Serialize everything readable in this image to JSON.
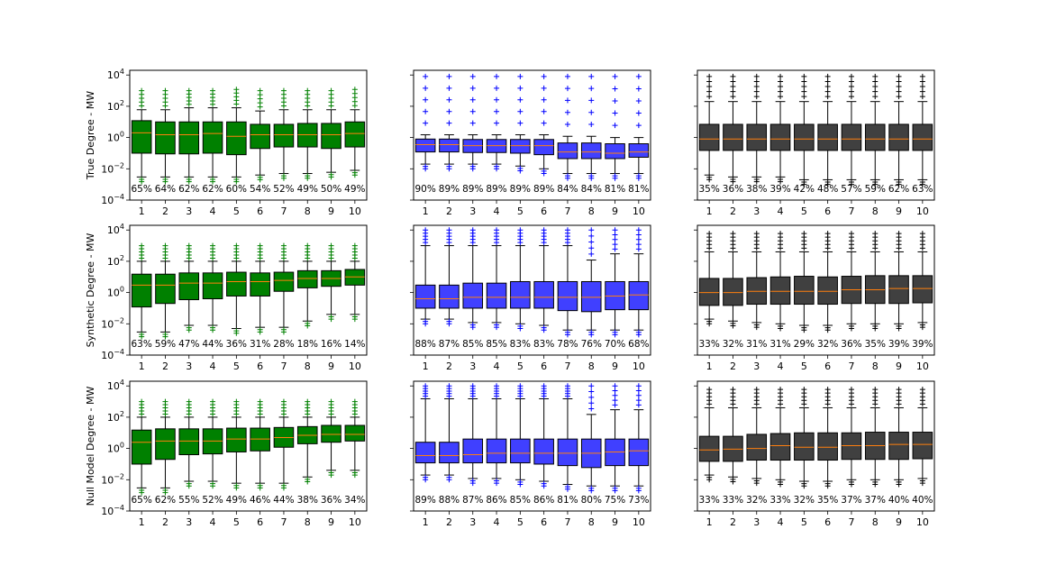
{
  "chart_data": {
    "type": "box",
    "grid": false,
    "y_scale": "log",
    "ylim": [
      0.0001,
      20000
    ],
    "y_ticks": [
      {
        "value": 0.0001,
        "base": "10",
        "exp": "−4"
      },
      {
        "value": 0.01,
        "base": "10",
        "exp": "−2"
      },
      {
        "value": 1,
        "base": "10",
        "exp": "0"
      },
      {
        "value": 100,
        "base": "10",
        "exp": "2"
      },
      {
        "value": 10000,
        "base": "10",
        "exp": "4"
      }
    ],
    "categories": [
      "1",
      "2",
      "3",
      "4",
      "5",
      "6",
      "7",
      "8",
      "9",
      "10"
    ],
    "row_labels": [
      "True Degree - MW",
      "Synthetic Degree - MW",
      "Null Model Degree - MW"
    ],
    "colors": {
      "green": "#008000",
      "blue": "#4040ff",
      "dark": "#404040",
      "median": "#ff7f0e",
      "green_flier": "#008000",
      "blue_flier": "#0000ff",
      "dark_flier": "#000000"
    },
    "panels": [
      {
        "row": 0,
        "col": 0,
        "color": "green",
        "percentages": [
          "65%",
          "64%",
          "62%",
          "62%",
          "60%",
          "54%",
          "52%",
          "49%",
          "50%",
          "49%"
        ],
        "boxes": [
          {
            "q1": 0.1,
            "med": 2,
            "q3": 12,
            "wlo": 0.003,
            "whi": 60,
            "fhi": 1000
          },
          {
            "q1": 0.09,
            "med": 1.5,
            "q3": 10,
            "wlo": 0.003,
            "whi": 60,
            "fhi": 1000
          },
          {
            "q1": 0.09,
            "med": 1.5,
            "q3": 10,
            "wlo": 0.003,
            "whi": 80,
            "fhi": 1000
          },
          {
            "q1": 0.1,
            "med": 1.8,
            "q3": 10,
            "wlo": 0.003,
            "whi": 80,
            "fhi": 1000
          },
          {
            "q1": 0.08,
            "med": 1.2,
            "q3": 10,
            "wlo": 0.003,
            "whi": 80,
            "fhi": 1200
          },
          {
            "q1": 0.2,
            "med": 1.5,
            "q3": 7,
            "wlo": 0.004,
            "whi": 50,
            "fhi": 1000
          },
          {
            "q1": 0.25,
            "med": 1.5,
            "q3": 7,
            "wlo": 0.005,
            "whi": 60,
            "fhi": 1000
          },
          {
            "q1": 0.25,
            "med": 1.5,
            "q3": 8,
            "wlo": 0.005,
            "whi": 60,
            "fhi": 1000
          },
          {
            "q1": 0.2,
            "med": 1.5,
            "q3": 8,
            "wlo": 0.006,
            "whi": 60,
            "fhi": 1000
          },
          {
            "q1": 0.25,
            "med": 1.8,
            "q3": 10,
            "wlo": 0.008,
            "whi": 60,
            "fhi": 1200
          }
        ]
      },
      {
        "row": 0,
        "col": 1,
        "color": "blue",
        "percentages": [
          "90%",
          "89%",
          "89%",
          "89%",
          "89%",
          "89%",
          "84%",
          "84%",
          "81%",
          "81%"
        ],
        "boxes": [
          {
            "q1": 0.12,
            "med": 0.35,
            "q3": 0.8,
            "wlo": 0.02,
            "whi": 1.5,
            "fhi": 8000
          },
          {
            "q1": 0.12,
            "med": 0.35,
            "q3": 0.8,
            "wlo": 0.02,
            "whi": 1.5,
            "fhi": 8000
          },
          {
            "q1": 0.11,
            "med": 0.3,
            "q3": 0.75,
            "wlo": 0.02,
            "whi": 1.5,
            "fhi": 8000
          },
          {
            "q1": 0.11,
            "med": 0.3,
            "q3": 0.75,
            "wlo": 0.02,
            "whi": 1.5,
            "fhi": 8000
          },
          {
            "q1": 0.1,
            "med": 0.3,
            "q3": 0.75,
            "wlo": 0.015,
            "whi": 1.5,
            "fhi": 8000
          },
          {
            "q1": 0.08,
            "med": 0.3,
            "q3": 0.75,
            "wlo": 0.01,
            "whi": 1.5,
            "fhi": 8000
          },
          {
            "q1": 0.045,
            "med": 0.12,
            "q3": 0.45,
            "wlo": 0.005,
            "whi": 1.2,
            "fhi": 8000
          },
          {
            "q1": 0.045,
            "med": 0.12,
            "q3": 0.45,
            "wlo": 0.005,
            "whi": 1.2,
            "fhi": 8000
          },
          {
            "q1": 0.045,
            "med": 0.1,
            "q3": 0.4,
            "wlo": 0.005,
            "whi": 1.0,
            "fhi": 8000
          },
          {
            "q1": 0.055,
            "med": 0.12,
            "q3": 0.4,
            "wlo": 0.005,
            "whi": 1.0,
            "fhi": 8000
          }
        ]
      },
      {
        "row": 0,
        "col": 2,
        "color": "dark",
        "percentages": [
          "35%",
          "36%",
          "38%",
          "39%",
          "42%",
          "48%",
          "57%",
          "59%",
          "62%",
          "63%"
        ],
        "boxes": [
          {
            "q1": 0.15,
            "med": 0.8,
            "q3": 7,
            "wlo": 0.004,
            "whi": 200,
            "fhi": 8000
          },
          {
            "q1": 0.15,
            "med": 0.8,
            "q3": 7,
            "wlo": 0.003,
            "whi": 200,
            "fhi": 8000
          },
          {
            "q1": 0.15,
            "med": 0.8,
            "q3": 7,
            "wlo": 0.003,
            "whi": 200,
            "fhi": 8000
          },
          {
            "q1": 0.15,
            "med": 0.8,
            "q3": 7,
            "wlo": 0.003,
            "whi": 200,
            "fhi": 8000
          },
          {
            "q1": 0.15,
            "med": 0.8,
            "q3": 7,
            "wlo": 0.002,
            "whi": 200,
            "fhi": 8000
          },
          {
            "q1": 0.15,
            "med": 0.8,
            "q3": 7,
            "wlo": 0.002,
            "whi": 200,
            "fhi": 8000
          },
          {
            "q1": 0.15,
            "med": 0.8,
            "q3": 7,
            "wlo": 0.002,
            "whi": 200,
            "fhi": 8000
          },
          {
            "q1": 0.15,
            "med": 0.8,
            "q3": 7,
            "wlo": 0.002,
            "whi": 200,
            "fhi": 8000
          },
          {
            "q1": 0.15,
            "med": 0.8,
            "q3": 7,
            "wlo": 0.002,
            "whi": 200,
            "fhi": 8000
          },
          {
            "q1": 0.15,
            "med": 0.8,
            "q3": 7,
            "wlo": 0.002,
            "whi": 200,
            "fhi": 8000
          }
        ]
      },
      {
        "row": 1,
        "col": 0,
        "color": "green",
        "percentages": [
          "63%",
          "59%",
          "47%",
          "44%",
          "36%",
          "31%",
          "28%",
          "18%",
          "16%",
          "14%"
        ],
        "boxes": [
          {
            "q1": 0.12,
            "med": 3,
            "q3": 15,
            "wlo": 0.003,
            "whi": 100,
            "fhi": 1000
          },
          {
            "q1": 0.2,
            "med": 3,
            "q3": 15,
            "wlo": 0.003,
            "whi": 100,
            "fhi": 1000
          },
          {
            "q1": 0.35,
            "med": 4,
            "q3": 18,
            "wlo": 0.008,
            "whi": 100,
            "fhi": 1000
          },
          {
            "q1": 0.4,
            "med": 4,
            "q3": 18,
            "wlo": 0.008,
            "whi": 100,
            "fhi": 1000
          },
          {
            "q1": 0.6,
            "med": 5,
            "q3": 20,
            "wlo": 0.005,
            "whi": 100,
            "fhi": 1000
          },
          {
            "q1": 0.6,
            "med": 5,
            "q3": 18,
            "wlo": 0.006,
            "whi": 100,
            "fhi": 1000
          },
          {
            "q1": 1.2,
            "med": 6,
            "q3": 20,
            "wlo": 0.006,
            "whi": 100,
            "fhi": 1000
          },
          {
            "q1": 2,
            "med": 8,
            "q3": 25,
            "wlo": 0.015,
            "whi": 100,
            "fhi": 1000
          },
          {
            "q1": 2.5,
            "med": 8,
            "q3": 25,
            "wlo": 0.04,
            "whi": 100,
            "fhi": 1000
          },
          {
            "q1": 3,
            "med": 10,
            "q3": 30,
            "wlo": 0.04,
            "whi": 100,
            "fhi": 1000
          }
        ]
      },
      {
        "row": 1,
        "col": 1,
        "color": "blue",
        "percentages": [
          "88%",
          "87%",
          "85%",
          "85%",
          "83%",
          "83%",
          "78%",
          "76%",
          "70%",
          "68%"
        ],
        "boxes": [
          {
            "q1": 0.1,
            "med": 0.4,
            "q3": 3,
            "wlo": 0.02,
            "whi": 1000,
            "fhi": 10000
          },
          {
            "q1": 0.1,
            "med": 0.4,
            "q3": 3,
            "wlo": 0.02,
            "whi": 1000,
            "fhi": 10000
          },
          {
            "q1": 0.1,
            "med": 0.5,
            "q3": 4,
            "wlo": 0.012,
            "whi": 1000,
            "fhi": 10000
          },
          {
            "q1": 0.1,
            "med": 0.5,
            "q3": 4,
            "wlo": 0.012,
            "whi": 1000,
            "fhi": 10000
          },
          {
            "q1": 0.1,
            "med": 0.5,
            "q3": 5,
            "wlo": 0.01,
            "whi": 1000,
            "fhi": 10000
          },
          {
            "q1": 0.1,
            "med": 0.5,
            "q3": 5,
            "wlo": 0.008,
            "whi": 1000,
            "fhi": 10000
          },
          {
            "q1": 0.07,
            "med": 0.5,
            "q3": 5,
            "wlo": 0.004,
            "whi": 1000,
            "fhi": 10000
          },
          {
            "q1": 0.06,
            "med": 0.5,
            "q3": 5,
            "wlo": 0.004,
            "whi": 120,
            "fhi": 10000
          },
          {
            "q1": 0.08,
            "med": 0.6,
            "q3": 5,
            "wlo": 0.004,
            "whi": 300,
            "fhi": 10000
          },
          {
            "q1": 0.08,
            "med": 0.7,
            "q3": 5,
            "wlo": 0.004,
            "whi": 300,
            "fhi": 10000
          }
        ]
      },
      {
        "row": 1,
        "col": 2,
        "color": "dark",
        "percentages": [
          "33%",
          "32%",
          "31%",
          "31%",
          "29%",
          "32%",
          "36%",
          "35%",
          "39%",
          "39%"
        ],
        "boxes": [
          {
            "q1": 0.15,
            "med": 1,
            "q3": 8,
            "wlo": 0.02,
            "whi": 400,
            "fhi": 6000
          },
          {
            "q1": 0.15,
            "med": 1,
            "q3": 8,
            "wlo": 0.015,
            "whi": 400,
            "fhi": 6000
          },
          {
            "q1": 0.18,
            "med": 1.2,
            "q3": 9,
            "wlo": 0.012,
            "whi": 400,
            "fhi": 6000
          },
          {
            "q1": 0.18,
            "med": 1.2,
            "q3": 10,
            "wlo": 0.01,
            "whi": 400,
            "fhi": 6000
          },
          {
            "q1": 0.18,
            "med": 1.2,
            "q3": 11,
            "wlo": 0.008,
            "whi": 400,
            "fhi": 6000
          },
          {
            "q1": 0.18,
            "med": 1.2,
            "q3": 10,
            "wlo": 0.008,
            "whi": 400,
            "fhi": 6000
          },
          {
            "q1": 0.2,
            "med": 1.5,
            "q3": 11,
            "wlo": 0.01,
            "whi": 400,
            "fhi": 6000
          },
          {
            "q1": 0.2,
            "med": 1.5,
            "q3": 12,
            "wlo": 0.01,
            "whi": 400,
            "fhi": 6000
          },
          {
            "q1": 0.2,
            "med": 1.8,
            "q3": 12,
            "wlo": 0.01,
            "whi": 400,
            "fhi": 6000
          },
          {
            "q1": 0.22,
            "med": 1.8,
            "q3": 12,
            "wlo": 0.012,
            "whi": 400,
            "fhi": 6000
          }
        ]
      },
      {
        "row": 2,
        "col": 0,
        "color": "green",
        "percentages": [
          "65%",
          "62%",
          "55%",
          "52%",
          "49%",
          "46%",
          "44%",
          "38%",
          "36%",
          "34%"
        ],
        "boxes": [
          {
            "q1": 0.1,
            "med": 2.5,
            "q3": 15,
            "wlo": 0.003,
            "whi": 100,
            "fhi": 1000
          },
          {
            "q1": 0.2,
            "med": 3,
            "q3": 18,
            "wlo": 0.003,
            "whi": 100,
            "fhi": 1000
          },
          {
            "q1": 0.4,
            "med": 3,
            "q3": 18,
            "wlo": 0.008,
            "whi": 100,
            "fhi": 1000
          },
          {
            "q1": 0.45,
            "med": 3,
            "q3": 18,
            "wlo": 0.008,
            "whi": 100,
            "fhi": 1000
          },
          {
            "q1": 0.6,
            "med": 4,
            "q3": 20,
            "wlo": 0.006,
            "whi": 100,
            "fhi": 1000
          },
          {
            "q1": 0.7,
            "med": 4,
            "q3": 20,
            "wlo": 0.006,
            "whi": 100,
            "fhi": 1000
          },
          {
            "q1": 1.2,
            "med": 5,
            "q3": 22,
            "wlo": 0.006,
            "whi": 100,
            "fhi": 1000
          },
          {
            "q1": 2,
            "med": 7,
            "q3": 25,
            "wlo": 0.015,
            "whi": 100,
            "fhi": 1000
          },
          {
            "q1": 2.5,
            "med": 8,
            "q3": 30,
            "wlo": 0.04,
            "whi": 100,
            "fhi": 1000
          },
          {
            "q1": 3,
            "med": 8,
            "q3": 30,
            "wlo": 0.04,
            "whi": 100,
            "fhi": 1000
          }
        ]
      },
      {
        "row": 2,
        "col": 1,
        "color": "blue",
        "percentages": [
          "89%",
          "88%",
          "87%",
          "86%",
          "85%",
          "86%",
          "81%",
          "80%",
          "75%",
          "73%"
        ],
        "boxes": [
          {
            "q1": 0.12,
            "med": 0.35,
            "q3": 2.5,
            "wlo": 0.02,
            "whi": 1500,
            "fhi": 10000
          },
          {
            "q1": 0.12,
            "med": 0.35,
            "q3": 2.5,
            "wlo": 0.02,
            "whi": 1500,
            "fhi": 10000
          },
          {
            "q1": 0.12,
            "med": 0.4,
            "q3": 4,
            "wlo": 0.012,
            "whi": 1500,
            "fhi": 10000
          },
          {
            "q1": 0.12,
            "med": 0.5,
            "q3": 4,
            "wlo": 0.012,
            "whi": 1500,
            "fhi": 10000
          },
          {
            "q1": 0.12,
            "med": 0.5,
            "q3": 4,
            "wlo": 0.01,
            "whi": 1500,
            "fhi": 10000
          },
          {
            "q1": 0.1,
            "med": 0.5,
            "q3": 4,
            "wlo": 0.008,
            "whi": 1500,
            "fhi": 10000
          },
          {
            "q1": 0.08,
            "med": 0.5,
            "q3": 4,
            "wlo": 0.005,
            "whi": 1500,
            "fhi": 10000
          },
          {
            "q1": 0.06,
            "med": 0.5,
            "q3": 4,
            "wlo": 0.004,
            "whi": 150,
            "fhi": 10000
          },
          {
            "q1": 0.08,
            "med": 0.6,
            "q3": 4,
            "wlo": 0.004,
            "whi": 300,
            "fhi": 10000
          },
          {
            "q1": 0.08,
            "med": 0.7,
            "q3": 4,
            "wlo": 0.004,
            "whi": 300,
            "fhi": 10000
          }
        ]
      },
      {
        "row": 2,
        "col": 2,
        "color": "dark",
        "percentages": [
          "33%",
          "33%",
          "32%",
          "33%",
          "32%",
          "35%",
          "37%",
          "37%",
          "40%",
          "40%"
        ],
        "boxes": [
          {
            "q1": 0.15,
            "med": 0.8,
            "q3": 6,
            "wlo": 0.02,
            "whi": 400,
            "fhi": 6000
          },
          {
            "q1": 0.15,
            "med": 0.9,
            "q3": 6,
            "wlo": 0.015,
            "whi": 400,
            "fhi": 6000
          },
          {
            "q1": 0.18,
            "med": 1,
            "q3": 8,
            "wlo": 0.012,
            "whi": 400,
            "fhi": 6000
          },
          {
            "q1": 0.18,
            "med": 1.5,
            "q3": 9,
            "wlo": 0.01,
            "whi": 400,
            "fhi": 6000
          },
          {
            "q1": 0.18,
            "med": 1.2,
            "q3": 10,
            "wlo": 0.008,
            "whi": 400,
            "fhi": 6000
          },
          {
            "q1": 0.18,
            "med": 1.2,
            "q3": 10,
            "wlo": 0.008,
            "whi": 400,
            "fhi": 6000
          },
          {
            "q1": 0.2,
            "med": 1.5,
            "q3": 10,
            "wlo": 0.01,
            "whi": 400,
            "fhi": 6000
          },
          {
            "q1": 0.2,
            "med": 1.5,
            "q3": 11,
            "wlo": 0.01,
            "whi": 400,
            "fhi": 6000
          },
          {
            "q1": 0.2,
            "med": 1.8,
            "q3": 11,
            "wlo": 0.01,
            "whi": 400,
            "fhi": 6000
          },
          {
            "q1": 0.22,
            "med": 1.8,
            "q3": 11,
            "wlo": 0.012,
            "whi": 400,
            "fhi": 6000
          }
        ]
      }
    ]
  }
}
